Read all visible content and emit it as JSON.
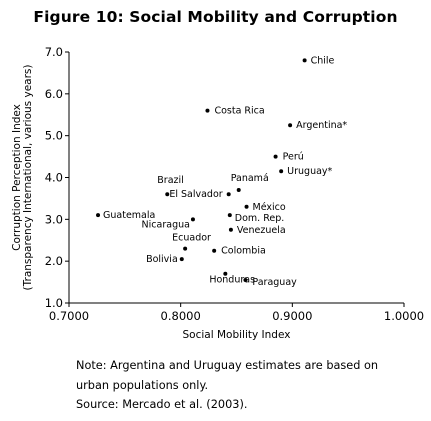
{
  "chart_data": {
    "type": "scatter",
    "title": "Figure 10: Social Mobility and Corruption",
    "xlabel": "Social Mobility Index",
    "ylabel": "Corruption Perception Index",
    "ylabel2": "(Transparency International, various years)",
    "xlim": [
      0.7,
      1.0
    ],
    "ylim": [
      1.0,
      7.0
    ],
    "xticks": [
      "0.7000",
      "0.8000",
      "0.9000",
      "1.0000"
    ],
    "yticks": [
      "1.0",
      "2.0",
      "3.0",
      "4.0",
      "5.0",
      "6.0",
      "7.0"
    ],
    "grid": false,
    "points": [
      {
        "label": "Chile",
        "x": 0.911,
        "y": 6.8
      },
      {
        "label": "Costa Rica",
        "x": 0.824,
        "y": 5.6
      },
      {
        "label": "Argentina*",
        "x": 0.898,
        "y": 5.25
      },
      {
        "label": "Perú",
        "x": 0.885,
        "y": 4.5
      },
      {
        "label": "Uruguay*",
        "x": 0.89,
        "y": 4.15
      },
      {
        "label": "Brazil",
        "x": 0.788,
        "y": 3.6
      },
      {
        "label": "El Salvador",
        "x": 0.843,
        "y": 3.6
      },
      {
        "label": "Panamá",
        "x": 0.852,
        "y": 3.7
      },
      {
        "label": "México",
        "x": 0.859,
        "y": 3.3
      },
      {
        "label": "Guatemala",
        "x": 0.726,
        "y": 3.1
      },
      {
        "label": "Nicaragua",
        "x": 0.811,
        "y": 3.0
      },
      {
        "label": "Dom. Rep.",
        "x": 0.844,
        "y": 3.1
      },
      {
        "label": "Venezuela",
        "x": 0.845,
        "y": 2.75
      },
      {
        "label": "Ecuador",
        "x": 0.804,
        "y": 2.3
      },
      {
        "label": "Colombia",
        "x": 0.83,
        "y": 2.25
      },
      {
        "label": "Bolivia",
        "x": 0.801,
        "y": 2.05
      },
      {
        "label": "Honduras",
        "x": 0.84,
        "y": 1.7
      },
      {
        "label": "Paraguay",
        "x": 0.858,
        "y": 1.55
      }
    ]
  },
  "notes": {
    "line1": "Note: Argentina and Uruguay estimates are based on",
    "line2": "urban populations only.",
    "source": "Source: Mercado et al. (2003)."
  }
}
